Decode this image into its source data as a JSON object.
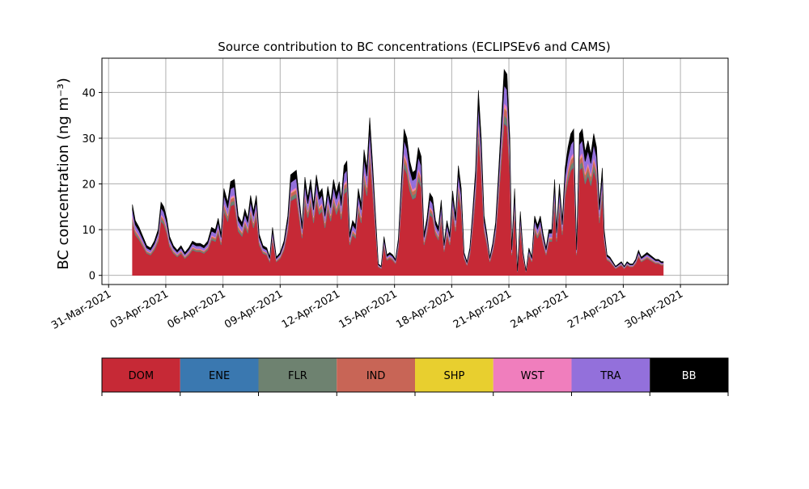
{
  "chart_data": {
    "type": "area",
    "stacked": true,
    "title": "Source contribution to BC concentrations (ECLIPSEv6 and CAMS)",
    "xlabel": "",
    "ylabel": "BC concentration (ng m⁻³)",
    "ylim": [
      -2.0,
      47.5
    ],
    "yticks": [
      0,
      10,
      20,
      30,
      40
    ],
    "x_tick_labels": [
      "31-Mar-2021",
      "03-Apr-2021",
      "06-Apr-2021",
      "09-Apr-2021",
      "12-Apr-2021",
      "15-Apr-2021",
      "18-Apr-2021",
      "21-Apr-2021",
      "24-Apr-2021",
      "27-Apr-2021",
      "30-Apr-2021"
    ],
    "x_tick_days": [
      0,
      3,
      6,
      9,
      12,
      15,
      18,
      21,
      24,
      27,
      30
    ],
    "xlim_days": [
      -0.35,
      32.5
    ],
    "grid": true,
    "legend_position": "below chart",
    "series_colors": {
      "DOM": "#c62936",
      "ENE": "#3a78b0",
      "FLR": "#6e8270",
      "IND": "#c86556",
      "SHP": "#e8cf2f",
      "WST": "#f07ebd",
      "TRA": "#9370db",
      "BB": "#000000"
    },
    "legend": [
      {
        "name": "DOM",
        "color": "#c62936",
        "text_color": "#000000"
      },
      {
        "name": "ENE",
        "color": "#3a78b0",
        "text_color": "#000000"
      },
      {
        "name": "FLR",
        "color": "#6e8270",
        "text_color": "#000000"
      },
      {
        "name": "IND",
        "color": "#c86556",
        "text_color": "#000000"
      },
      {
        "name": "SHP",
        "color": "#e8cf2f",
        "text_color": "#000000"
      },
      {
        "name": "WST",
        "color": "#f07ebd",
        "text_color": "#000000"
      },
      {
        "name": "TRA",
        "color": "#9370db",
        "text_color": "#000000"
      },
      {
        "name": "BB",
        "color": "#000000",
        "text_color": "#ffffff"
      }
    ],
    "total_profile": [
      [
        1.25,
        15.5
      ],
      [
        1.4,
        12.0
      ],
      [
        1.6,
        10.5
      ],
      [
        1.8,
        8.5
      ],
      [
        2.0,
        6.5
      ],
      [
        2.2,
        6.0
      ],
      [
        2.4,
        7.5
      ],
      [
        2.6,
        10.0
      ],
      [
        2.75,
        16.0
      ],
      [
        2.9,
        15.0
      ],
      [
        3.05,
        12.5
      ],
      [
        3.2,
        8.5
      ],
      [
        3.4,
        6.5
      ],
      [
        3.6,
        5.5
      ],
      [
        3.8,
        6.5
      ],
      [
        4.0,
        5.0
      ],
      [
        4.2,
        6.0
      ],
      [
        4.4,
        7.5
      ],
      [
        4.6,
        7.0
      ],
      [
        4.8,
        7.0
      ],
      [
        5.0,
        6.5
      ],
      [
        5.2,
        7.5
      ],
      [
        5.4,
        10.5
      ],
      [
        5.6,
        10.0
      ],
      [
        5.75,
        12.5
      ],
      [
        5.9,
        9.0
      ],
      [
        6.05,
        19.0
      ],
      [
        6.25,
        16.0
      ],
      [
        6.4,
        20.5
      ],
      [
        6.6,
        21.0
      ],
      [
        6.8,
        13.0
      ],
      [
        7.0,
        11.5
      ],
      [
        7.15,
        14.5
      ],
      [
        7.3,
        12.5
      ],
      [
        7.45,
        17.5
      ],
      [
        7.6,
        14.0
      ],
      [
        7.75,
        17.5
      ],
      [
        7.9,
        9.0
      ],
      [
        8.1,
        6.5
      ],
      [
        8.3,
        6.0
      ],
      [
        8.45,
        4.0
      ],
      [
        8.6,
        10.5
      ],
      [
        8.8,
        4.0
      ],
      [
        9.0,
        5.0
      ],
      [
        9.2,
        7.5
      ],
      [
        9.4,
        13.0
      ],
      [
        9.55,
        22.0
      ],
      [
        9.7,
        22.5
      ],
      [
        9.85,
        23.0
      ],
      [
        10.0,
        17.0
      ],
      [
        10.15,
        11.0
      ],
      [
        10.3,
        21.5
      ],
      [
        10.45,
        17.0
      ],
      [
        10.6,
        21.0
      ],
      [
        10.75,
        15.5
      ],
      [
        10.9,
        22.0
      ],
      [
        11.05,
        18.0
      ],
      [
        11.2,
        19.0
      ],
      [
        11.35,
        14.0
      ],
      [
        11.5,
        19.5
      ],
      [
        11.65,
        16.0
      ],
      [
        11.8,
        21.0
      ],
      [
        11.95,
        18.0
      ],
      [
        12.1,
        20.5
      ],
      [
        12.2,
        16.5
      ],
      [
        12.35,
        24.0
      ],
      [
        12.5,
        25.0
      ],
      [
        12.65,
        9.0
      ],
      [
        12.8,
        12.0
      ],
      [
        12.95,
        11.0
      ],
      [
        13.1,
        19.0
      ],
      [
        13.25,
        15.5
      ],
      [
        13.4,
        27.5
      ],
      [
        13.55,
        23.5
      ],
      [
        13.7,
        34.5
      ],
      [
        13.85,
        24.5
      ],
      [
        14.0,
        13.5
      ],
      [
        14.15,
        2.5
      ],
      [
        14.3,
        2.0
      ],
      [
        14.45,
        8.5
      ],
      [
        14.6,
        4.5
      ],
      [
        14.75,
        5.0
      ],
      [
        14.9,
        4.5
      ],
      [
        15.05,
        3.5
      ],
      [
        15.2,
        8.0
      ],
      [
        15.35,
        20.0
      ],
      [
        15.5,
        32.0
      ],
      [
        15.65,
        30.0
      ],
      [
        15.8,
        25.0
      ],
      [
        15.95,
        22.5
      ],
      [
        16.1,
        23.0
      ],
      [
        16.25,
        28.0
      ],
      [
        16.4,
        26.0
      ],
      [
        16.55,
        9.0
      ],
      [
        16.7,
        12.5
      ],
      [
        16.85,
        18.0
      ],
      [
        17.0,
        17.0
      ],
      [
        17.15,
        12.0
      ],
      [
        17.3,
        10.5
      ],
      [
        17.45,
        16.5
      ],
      [
        17.6,
        7.0
      ],
      [
        17.75,
        12.0
      ],
      [
        17.9,
        9.0
      ],
      [
        18.05,
        18.5
      ],
      [
        18.2,
        13.0
      ],
      [
        18.35,
        24.0
      ],
      [
        18.5,
        19.0
      ],
      [
        18.65,
        5.0
      ],
      [
        18.8,
        3.0
      ],
      [
        18.95,
        6.0
      ],
      [
        19.1,
        14.0
      ],
      [
        19.25,
        23.0
      ],
      [
        19.4,
        40.5
      ],
      [
        19.55,
        30.0
      ],
      [
        19.7,
        13.0
      ],
      [
        19.85,
        9.0
      ],
      [
        20.0,
        4.0
      ],
      [
        20.15,
        7.0
      ],
      [
        20.3,
        11.5
      ],
      [
        20.45,
        22.0
      ],
      [
        20.6,
        33.5
      ],
      [
        20.75,
        45.0
      ],
      [
        20.9,
        44.0
      ],
      [
        21.05,
        30.0
      ],
      [
        21.15,
        6.0
      ],
      [
        21.3,
        19.0
      ],
      [
        21.45,
        1.0
      ],
      [
        21.6,
        14.0
      ],
      [
        21.75,
        5.0
      ],
      [
        21.9,
        1.0
      ],
      [
        22.05,
        6.0
      ],
      [
        22.2,
        4.0
      ],
      [
        22.35,
        13.0
      ],
      [
        22.5,
        11.0
      ],
      [
        22.65,
        13.0
      ],
      [
        22.8,
        9.0
      ],
      [
        22.95,
        6.0
      ],
      [
        23.1,
        10.0
      ],
      [
        23.25,
        10.0
      ],
      [
        23.4,
        21.0
      ],
      [
        23.5,
        10.0
      ],
      [
        23.65,
        20.0
      ],
      [
        23.8,
        12.0
      ],
      [
        23.95,
        23.5
      ],
      [
        24.1,
        28.0
      ],
      [
        24.25,
        31.0
      ],
      [
        24.4,
        32.0
      ],
      [
        24.55,
        6.0
      ],
      [
        24.7,
        31.0
      ],
      [
        24.85,
        32.0
      ],
      [
        25.0,
        27.0
      ],
      [
        25.15,
        29.5
      ],
      [
        25.3,
        26.5
      ],
      [
        25.45,
        31.0
      ],
      [
        25.6,
        28.0
      ],
      [
        25.75,
        15.5
      ],
      [
        25.9,
        23.5
      ],
      [
        26.0,
        10.0
      ],
      [
        26.15,
        4.5
      ],
      [
        26.3,
        4.0
      ],
      [
        26.45,
        3.0
      ],
      [
        26.6,
        2.0
      ],
      [
        26.75,
        2.5
      ],
      [
        26.9,
        3.0
      ],
      [
        27.05,
        2.0
      ],
      [
        27.2,
        3.0
      ],
      [
        27.35,
        2.5
      ],
      [
        27.5,
        2.5
      ],
      [
        27.65,
        3.5
      ],
      [
        27.8,
        5.5
      ],
      [
        27.95,
        4.0
      ],
      [
        28.1,
        4.5
      ],
      [
        28.25,
        5.0
      ],
      [
        28.4,
        4.5
      ],
      [
        28.55,
        4.0
      ],
      [
        28.7,
        3.5
      ],
      [
        28.85,
        3.5
      ],
      [
        29.0,
        3.0
      ],
      [
        29.1,
        3.0
      ]
    ],
    "series_fractions": {
      "DOM": 0.74,
      "ENE": 0.004,
      "FLR": 0.035,
      "IND": 0.035,
      "SHP": 0.004,
      "WST": 0.02,
      "TRA": 0.085,
      "BB": 0.077
    }
  }
}
